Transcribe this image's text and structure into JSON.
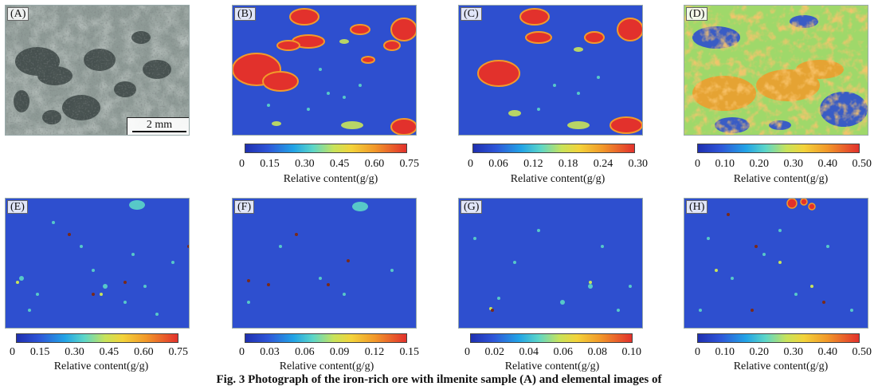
{
  "panels": {
    "A": {
      "label": "(A)"
    },
    "B": {
      "label": "(B)"
    },
    "C": {
      "label": "(C)"
    },
    "D": {
      "label": "(D)"
    },
    "E": {
      "label": "(E)"
    },
    "F": {
      "label": "(F)"
    },
    "G": {
      "label": "(G)"
    },
    "H": {
      "label": "(H)"
    }
  },
  "scale_bar": {
    "text": "2 mm"
  },
  "colorbars": {
    "B": {
      "ticks": [
        "0",
        "0.15",
        "0.30",
        "0.45",
        "0.60",
        "0.75"
      ],
      "label": "Relative content(g/g)"
    },
    "C": {
      "ticks": [
        "0",
        "0.06",
        "0.12",
        "0.18",
        "0.24",
        "0.30"
      ],
      "label": "Relative content(g/g)"
    },
    "D": {
      "ticks": [
        "0",
        "0.10",
        "0.20",
        "0.30",
        "0.40",
        "0.50"
      ],
      "label": "Relative content(g/g)"
    },
    "E": {
      "ticks": [
        "0",
        "0.15",
        "0.30",
        "0.45",
        "0.60",
        "0.75"
      ],
      "label": "Relative content(g/g)"
    },
    "F": {
      "ticks": [
        "0",
        "0.03",
        "0.06",
        "0.09",
        "0.12",
        "0.15"
      ],
      "label": "Relative content(g/g)"
    },
    "G": {
      "ticks": [
        "0",
        "0.02",
        "0.04",
        "0.06",
        "0.08",
        "0.10"
      ],
      "label": "Relative content(g/g)"
    },
    "H": {
      "ticks": [
        "0",
        "0.10",
        "0.20",
        "0.30",
        "0.40",
        "0.50"
      ],
      "label": "Relative content(g/g)"
    }
  },
  "colors": {
    "background_map": "#2e4fcf",
    "low": "#1f2fb0",
    "mid": "#c8e35a",
    "high": "#e2312c"
  },
  "caption": "Fig. 3   Photograph of the iron-rich ore with ilmenite sample (A) and elemental images of"
}
